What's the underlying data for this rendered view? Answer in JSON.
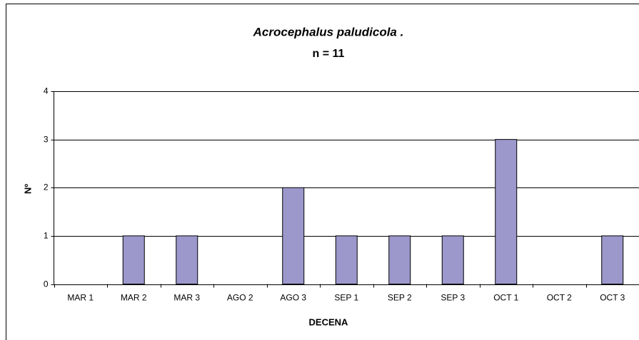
{
  "chart_data": {
    "type": "bar",
    "title": "Acrocephalus paludicola .",
    "subtitle": "n = 11",
    "x_label": "DECENA",
    "y_label": "Nº",
    "categories": [
      "MAR 1",
      "MAR 2",
      "MAR 3",
      "AGO 2",
      "AGO 3",
      "SEP 1",
      "SEP 2",
      "SEP 3",
      "OCT 1",
      "OCT 2",
      "OCT 3"
    ],
    "values": [
      0,
      1,
      1,
      0,
      2,
      1,
      1,
      1,
      3,
      0,
      1
    ],
    "color": "#9c98cc",
    "ylim": [
      0,
      4
    ],
    "yticks": [
      0,
      1,
      2,
      3,
      4
    ],
    "grid": true
  }
}
